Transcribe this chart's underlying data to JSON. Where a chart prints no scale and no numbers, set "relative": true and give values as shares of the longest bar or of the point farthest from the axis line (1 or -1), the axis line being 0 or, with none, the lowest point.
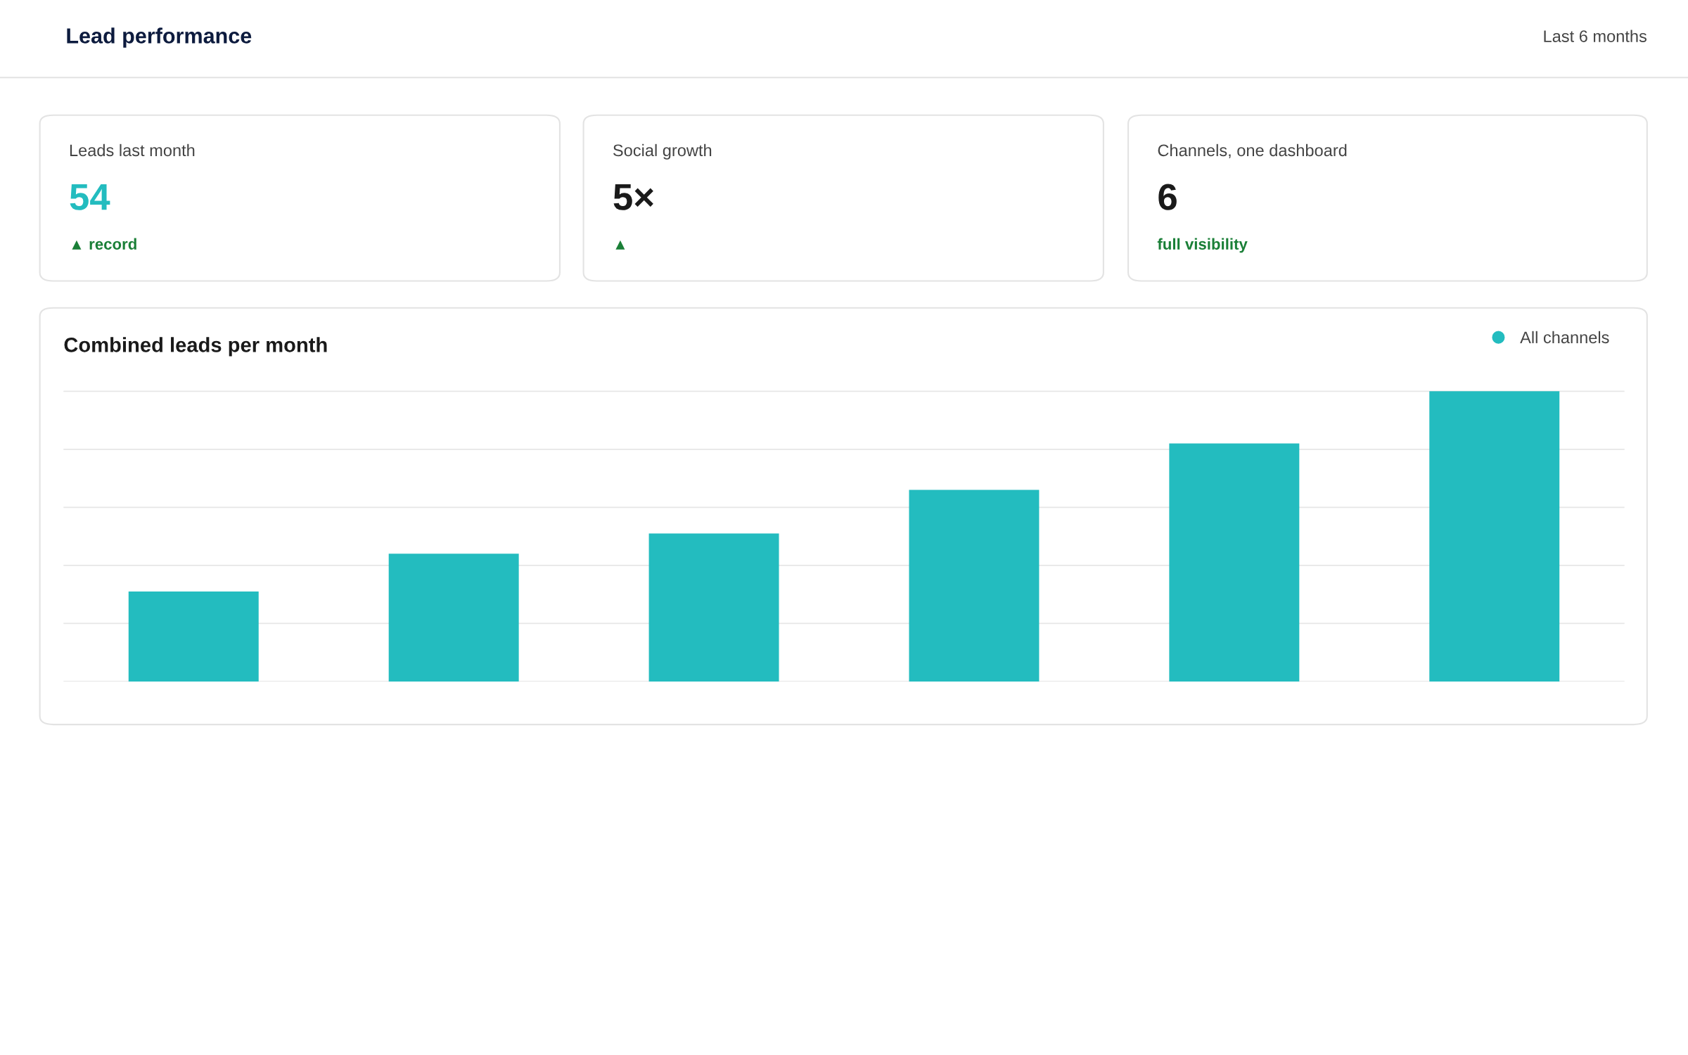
{
  "chart_data": [
    {
      "type": "other",
      "title": "Lead performance",
      "annotations": [
        "Last 6 months"
      ]
    },
    {
      "type": "other",
      "title": "Leads last month",
      "annotations": [
        "54",
        "▲ record"
      ]
    },
    {
      "type": "other",
      "title": "Social growth",
      "annotations": [
        "5×",
        "▲"
      ]
    },
    {
      "type": "other",
      "title": "Channels, one dashboard",
      "annotations": [
        "6",
        "full visibility"
      ]
    },
    {
      "type": "bar",
      "title": "Combined leads per month",
      "categories": [
        null,
        null,
        null,
        null,
        null,
        null
      ],
      "series": [
        {
          "name": "All channels",
          "color": "#23bcbf",
          "values": [
            0.31,
            0.44,
            0.51,
            0.66,
            0.82,
            1
          ]
        }
      ],
      "relative": true,
      "grid": "y",
      "legend": "top right"
    }
  ]
}
